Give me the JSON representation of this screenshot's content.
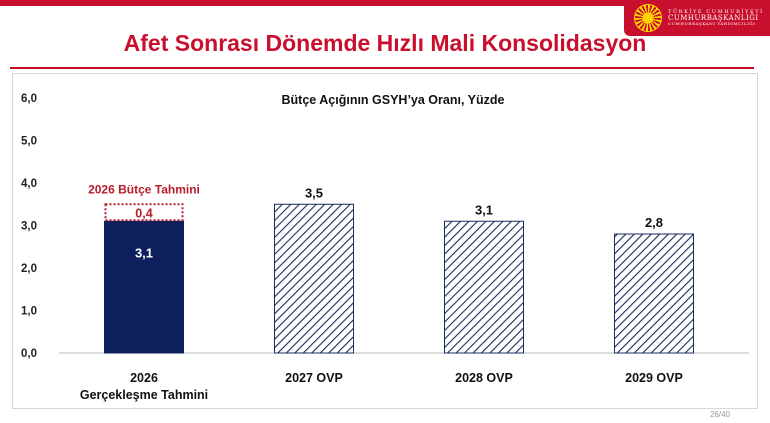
{
  "slide": {
    "title": "Afet Sonrası Dönemde Hızlı Mali Konsolidasyon",
    "page": "26/40"
  },
  "logo": {
    "line1": "TÜRKİYE CUMHURİYETİ",
    "line2": "CUMHURBAŞKANLIĞI",
    "line3": "CUMHURBAŞKANI YARDIMCILIĞI",
    "icon": "presidential-seal-icon"
  },
  "colors": {
    "brand_red": "#c8102e",
    "bar_navy": "#0d1f5c",
    "hatch": "#1a2c5e",
    "dotted_red": "#b51d2b"
  },
  "chart_data": {
    "type": "bar",
    "title": "Bütçe Açığının GSYH’ya Oranı, Yüzde",
    "categories": [
      [
        "2026",
        "Gerçekleşme Tahmini"
      ],
      [
        "2027 OVP"
      ],
      [
        "2028 OVP"
      ],
      [
        "2029 OVP"
      ]
    ],
    "values": [
      3.1,
      3.5,
      3.1,
      2.8
    ],
    "value_labels": [
      "3,1",
      "3,5",
      "3,1",
      "2,8"
    ],
    "styles": [
      "solid",
      "hatched",
      "hatched",
      "hatched"
    ],
    "stack_extra": {
      "category_index": 0,
      "value": 0.4,
      "label": "0,4",
      "annotation": "2026 Bütçe Tahmini",
      "style": "dotted"
    },
    "ylim": [
      0,
      6
    ],
    "yticks": [
      0,
      1,
      2,
      3,
      4,
      5,
      6
    ],
    "ytick_labels": [
      "0,0",
      "1,0",
      "2,0",
      "3,0",
      "4,0",
      "5,0",
      "6,0"
    ],
    "xlabel": "",
    "ylabel": "",
    "grid": false,
    "legend": "none"
  }
}
